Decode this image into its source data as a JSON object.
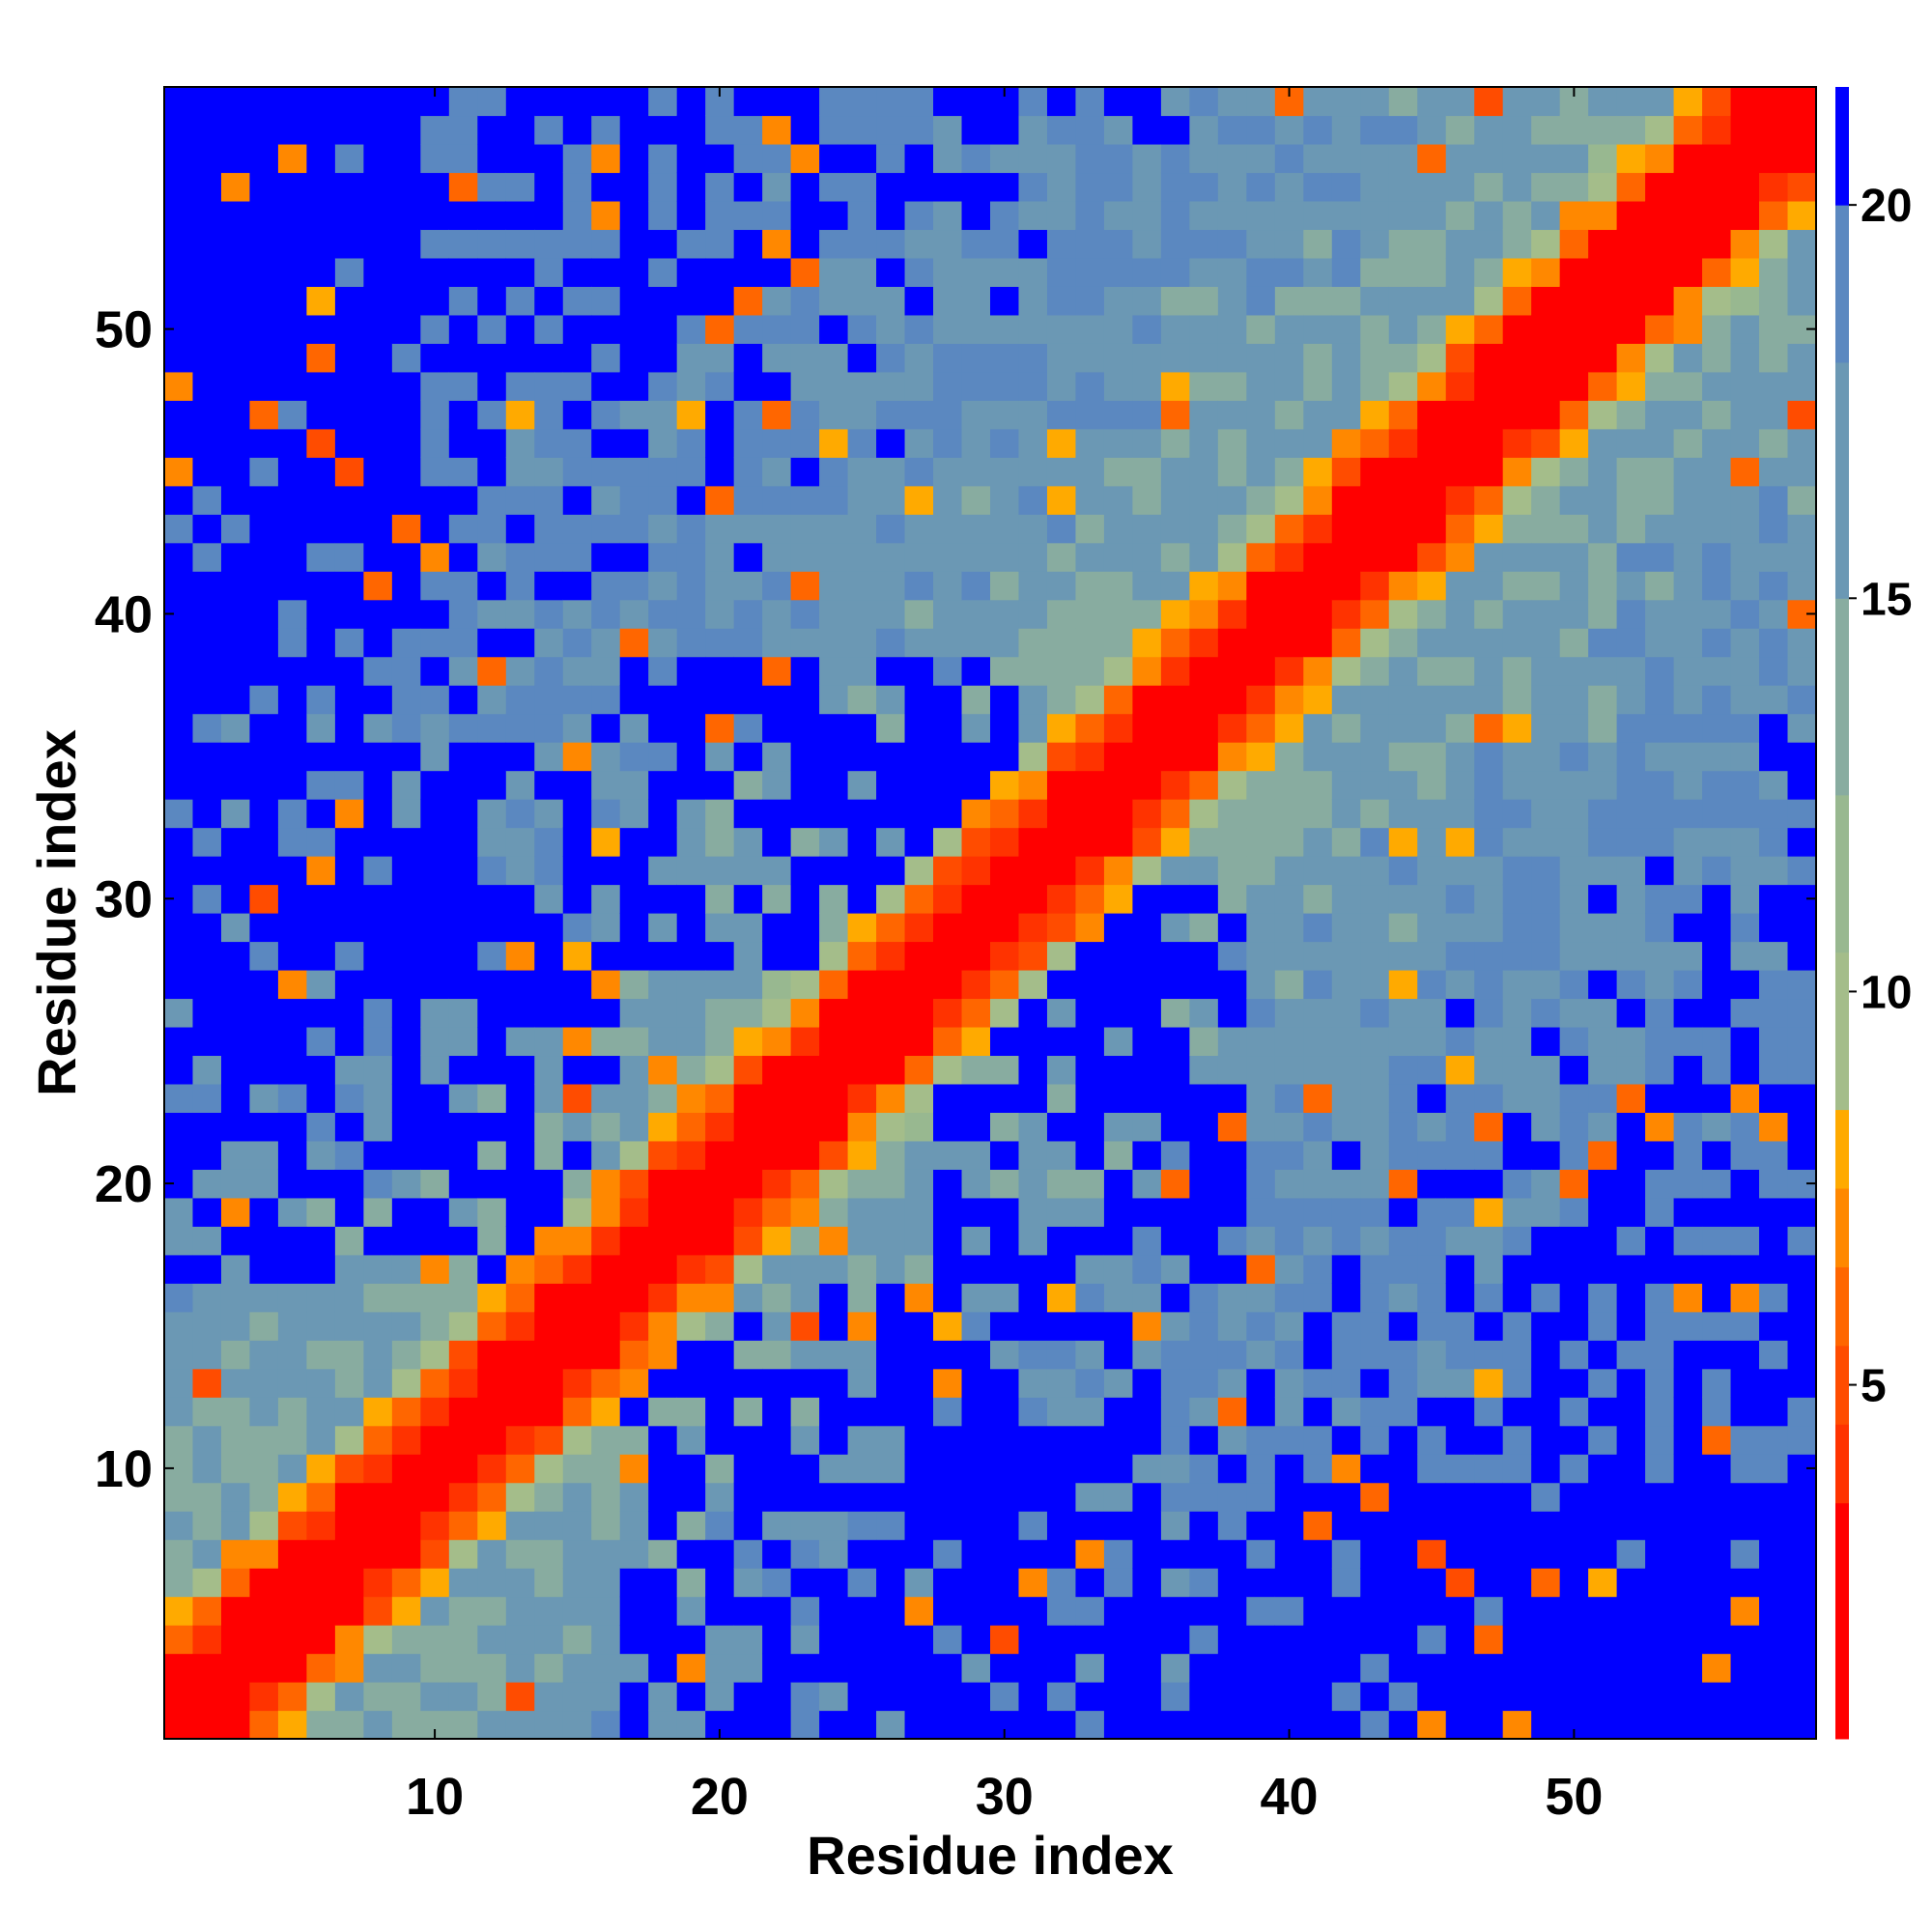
{
  "chart_data": {
    "type": "heatmap",
    "title": "",
    "xlabel": "Residue index",
    "ylabel": "Residue index",
    "n_residues": 58,
    "xlim": [
      0.5,
      58.5
    ],
    "ylim": [
      0.5,
      58.5
    ],
    "x_ticks": [
      10,
      20,
      30,
      40,
      50
    ],
    "y_ticks": [
      10,
      20,
      30,
      40,
      50
    ],
    "x_tick_labels": [
      "10",
      "20",
      "30",
      "40",
      "50"
    ],
    "y_tick_labels": [
      "10",
      "20",
      "30",
      "40",
      "50"
    ],
    "colorbar": {
      "min": 0.5,
      "max": 21.5,
      "ticks": [
        5,
        10,
        15,
        20
      ],
      "tick_labels": [
        "5",
        "10",
        "15",
        "20"
      ],
      "levels": [
        {
          "from": 0.5,
          "to": 3.5,
          "color": "#ff0000"
        },
        {
          "from": 3.5,
          "to": 4.5,
          "color": "#ff3300"
        },
        {
          "from": 4.5,
          "to": 5.5,
          "color": "#ff4c00"
        },
        {
          "from": 5.5,
          "to": 6.5,
          "color": "#ff6600"
        },
        {
          "from": 6.5,
          "to": 7.5,
          "color": "#ff8800"
        },
        {
          "from": 7.5,
          "to": 8.5,
          "color": "#ffaa00"
        },
        {
          "from": 8.5,
          "to": 10.5,
          "color": "#a4bd8a"
        },
        {
          "from": 10.5,
          "to": 12.5,
          "color": "#98b890"
        },
        {
          "from": 12.5,
          "to": 15,
          "color": "#88aca0"
        },
        {
          "from": 15,
          "to": 18,
          "color": "#6b98b4"
        },
        {
          "from": 18,
          "to": 20,
          "color": "#5b88c0"
        },
        {
          "from": 20,
          "to": 21.5,
          "color": "#0000ff"
        }
      ]
    },
    "values_description": "Symmetric 58x58 residue distance map; diagonal band red (<4), orange near diagonal, green-blue mid range, blue (>20) far contacts.",
    "matrix_model": {
      "diagonal_scale": 3.6,
      "blue_threshold": 20
    },
    "grid": false,
    "legend": "colorbar-right"
  }
}
